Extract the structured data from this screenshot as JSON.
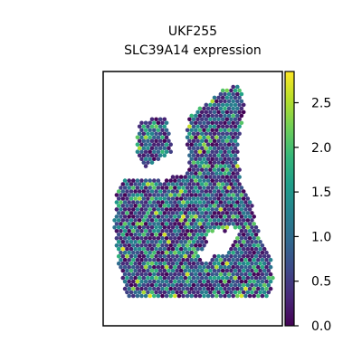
{
  "chart_data": {
    "type": "heatmap",
    "title_lines": [
      "UKF255",
      "SLC39A14 expression"
    ],
    "xlabel": "",
    "ylabel": "",
    "colorbar": {
      "min": 0.0,
      "max": 2.85,
      "ticks": [
        0.0,
        0.5,
        1.0,
        1.5,
        2.0,
        2.5
      ],
      "tick_labels": [
        "0.0",
        "0.5",
        "1.0",
        "1.5",
        "2.0",
        "2.5"
      ],
      "colormap": "viridis"
    },
    "plot_type_detail": "spatial hexagonal spot map of expression values",
    "value_distribution": "mostly 0.0-1.0 (purple/blue), scattered 1.5-2.3 (teal/green), rare up to ~2.7 (yellow)"
  },
  "colors": {
    "viridis": [
      "#440154",
      "#482878",
      "#3e4989",
      "#31688e",
      "#26828e",
      "#1f9e89",
      "#35b779",
      "#6ece58",
      "#b5de2b",
      "#fde725"
    ],
    "axes": "#000000",
    "background": "#ffffff"
  }
}
